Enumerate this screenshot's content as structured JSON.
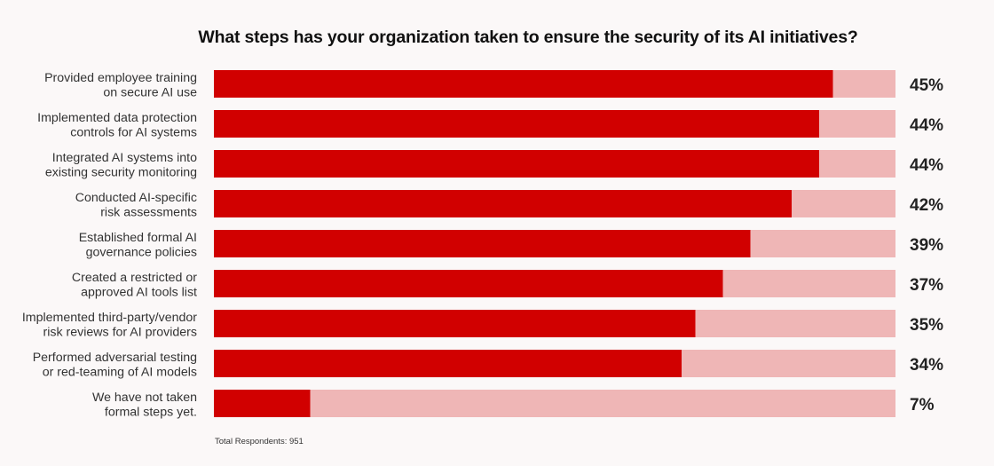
{
  "chart_data": {
    "type": "bar",
    "orientation": "horizontal",
    "title": "What steps has your organization taken to ensure the security of its AI initiatives?",
    "categories": [
      [
        "Provided employee training",
        "on secure AI use"
      ],
      [
        "Implemented data protection",
        "controls for AI systems"
      ],
      [
        "Integrated AI systems into",
        "existing security monitoring"
      ],
      [
        "Conducted AI-specific",
        "risk assessments"
      ],
      [
        "Established formal AI",
        "governance policies"
      ],
      [
        "Created a restricted or",
        "approved AI tools list"
      ],
      [
        "Implemented third-party/vendor",
        "risk reviews for AI providers"
      ],
      [
        "Performed adversarial testing",
        "or red-teaming of AI models"
      ],
      [
        "We have not taken",
        "formal steps yet."
      ]
    ],
    "values": [
      45,
      44,
      44,
      42,
      39,
      37,
      35,
      34,
      7
    ],
    "value_labels": [
      "45%",
      "44%",
      "44%",
      "42%",
      "39%",
      "37%",
      "35%",
      "34%",
      "7%"
    ],
    "xlim": [
      0,
      50
    ],
    "grid": false,
    "colors": {
      "bar": "#d10000",
      "track": "#efb6b6"
    }
  },
  "footnote": "Total Respondents: 951"
}
